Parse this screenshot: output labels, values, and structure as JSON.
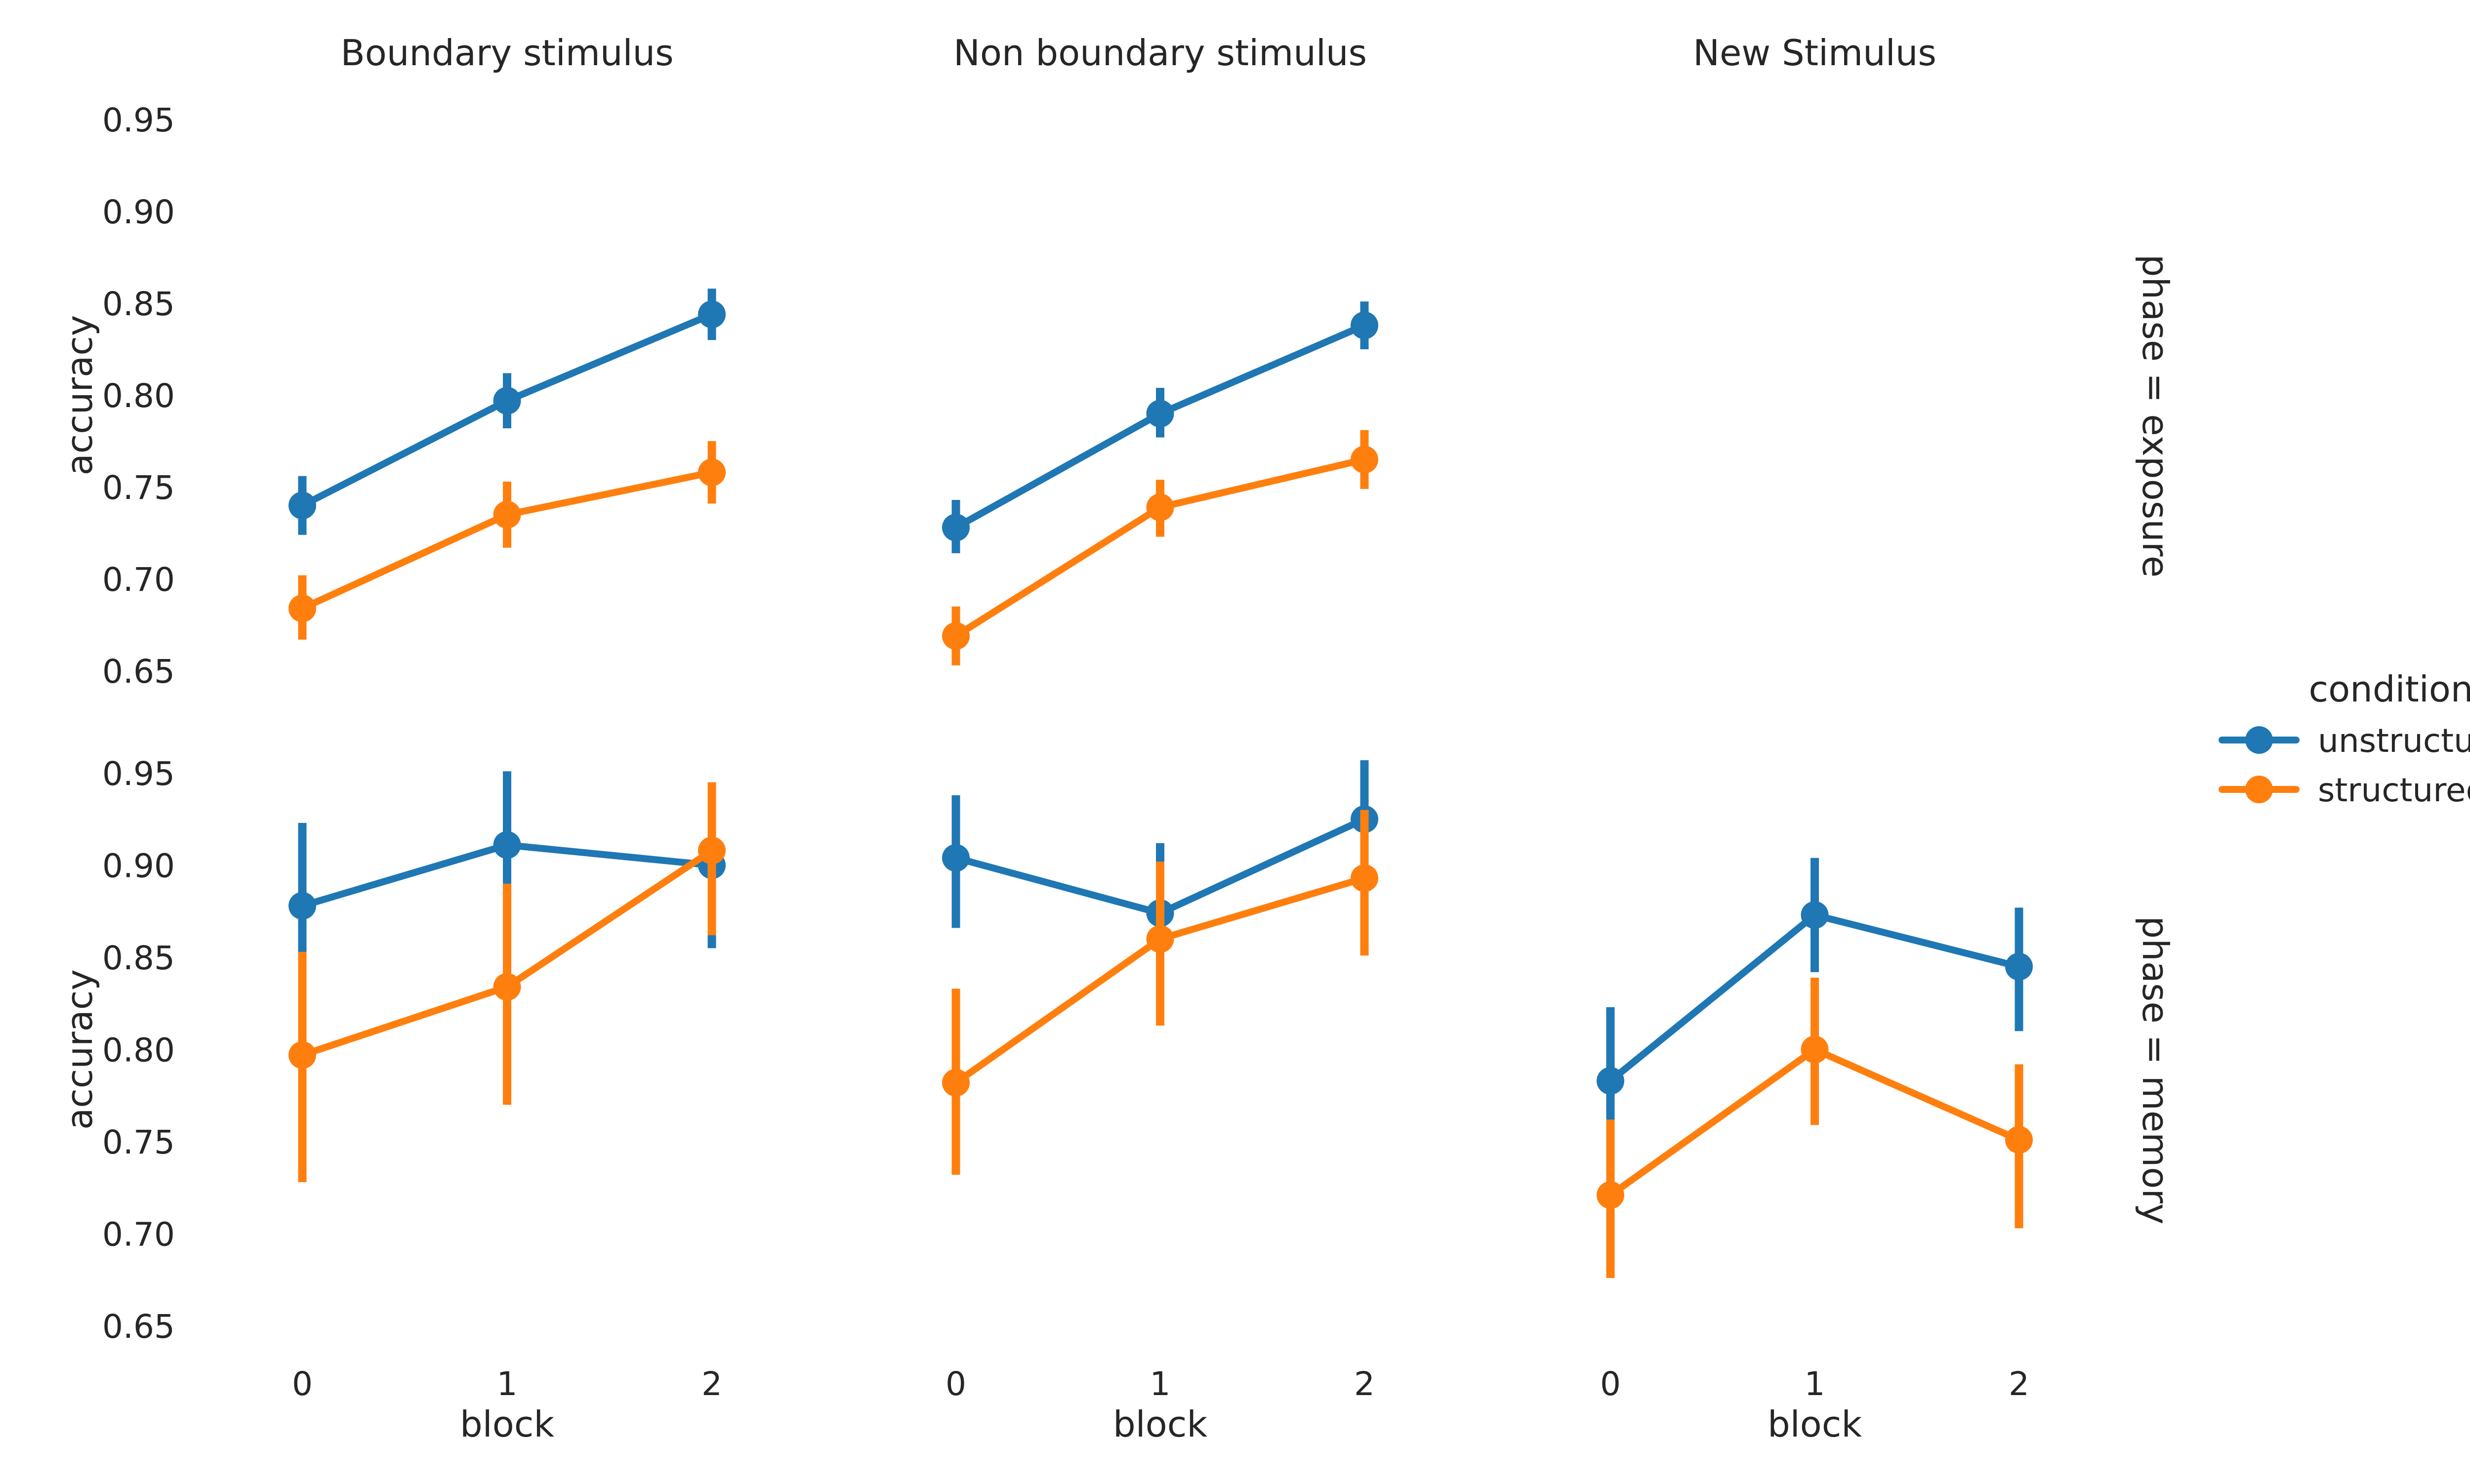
{
  "chart_data": {
    "type": "line",
    "kind": "pointplot facet grid (rows x columns) with error bars",
    "columns": [
      "Boundary stimulus",
      "Non boundary stimulus",
      "New Stimulus"
    ],
    "rows": [
      "phase = exposure",
      "phase = memory"
    ],
    "x_label": "block",
    "y_label": "accuracy",
    "x_categories": [
      "0",
      "1",
      "2"
    ],
    "y_range": [
      0.64,
      0.96
    ],
    "y_ticks": [
      "0.65",
      "0.70",
      "0.75",
      "0.80",
      "0.85",
      "0.90",
      "0.95"
    ],
    "grid": false,
    "legend": {
      "title": "condition",
      "placement": "right",
      "entries": [
        {
          "name": "unstructured",
          "color": "#1f77b4"
        },
        {
          "name": "structured",
          "color": "#ff7f0e"
        }
      ]
    },
    "panels": [
      {
        "row": "phase = exposure",
        "col": "Boundary stimulus",
        "series": [
          {
            "name": "unstructured",
            "color": "#1f77b4",
            "values": [
              0.74,
              0.797,
              0.844
            ],
            "ci": [
              [
                0.724,
                0.756
              ],
              [
                0.782,
                0.812
              ],
              [
                0.83,
                0.858
              ]
            ]
          },
          {
            "name": "structured",
            "color": "#ff7f0e",
            "values": [
              0.684,
              0.735,
              0.758
            ],
            "ci": [
              [
                0.667,
                0.702
              ],
              [
                0.717,
                0.753
              ],
              [
                0.741,
                0.775
              ]
            ]
          }
        ]
      },
      {
        "row": "phase = exposure",
        "col": "Non boundary stimulus",
        "series": [
          {
            "name": "unstructured",
            "color": "#1f77b4",
            "values": [
              0.728,
              0.79,
              0.838
            ],
            "ci": [
              [
                0.714,
                0.743
              ],
              [
                0.777,
                0.804
              ],
              [
                0.825,
                0.851
              ]
            ]
          },
          {
            "name": "structured",
            "color": "#ff7f0e",
            "values": [
              0.669,
              0.739,
              0.765
            ],
            "ci": [
              [
                0.653,
                0.685
              ],
              [
                0.723,
                0.754
              ],
              [
                0.749,
                0.781
              ]
            ]
          }
        ]
      },
      {
        "row": "phase = exposure",
        "col": "New Stimulus",
        "series": []
      },
      {
        "row": "phase = memory",
        "col": "Boundary stimulus",
        "series": [
          {
            "name": "unstructured",
            "color": "#1f77b4",
            "values": [
              0.878,
              0.911,
              0.9
            ],
            "ci": [
              [
                0.838,
                0.923
              ],
              [
                0.87,
                0.951
              ],
              [
                0.855,
                0.945
              ]
            ]
          },
          {
            "name": "structured",
            "color": "#ff7f0e",
            "values": [
              0.797,
              0.834,
              0.908
            ],
            "ci": [
              [
                0.728,
                0.853
              ],
              [
                0.77,
                0.89
              ],
              [
                0.862,
                0.945
              ]
            ]
          }
        ]
      },
      {
        "row": "phase = memory",
        "col": "Non boundary stimulus",
        "series": [
          {
            "name": "unstructured",
            "color": "#1f77b4",
            "values": [
              0.904,
              0.874,
              0.925
            ],
            "ci": [
              [
                0.866,
                0.938
              ],
              [
                0.836,
                0.912
              ],
              [
                0.889,
                0.957
              ]
            ]
          },
          {
            "name": "structured",
            "color": "#ff7f0e",
            "values": [
              0.782,
              0.86,
              0.893
            ],
            "ci": [
              [
                0.732,
                0.833
              ],
              [
                0.813,
                0.902
              ],
              [
                0.851,
                0.93
              ]
            ]
          }
        ]
      },
      {
        "row": "phase = memory",
        "col": "New Stimulus",
        "series": [
          {
            "name": "unstructured",
            "color": "#1f77b4",
            "values": [
              0.783,
              0.873,
              0.845
            ],
            "ci": [
              [
                0.743,
                0.823
              ],
              [
                0.842,
                0.904
              ],
              [
                0.81,
                0.877
              ]
            ]
          },
          {
            "name": "structured",
            "color": "#ff7f0e",
            "values": [
              0.721,
              0.8,
              0.751
            ],
            "ci": [
              [
                0.676,
                0.762
              ],
              [
                0.759,
                0.839
              ],
              [
                0.703,
                0.792
              ]
            ]
          }
        ]
      }
    ]
  }
}
